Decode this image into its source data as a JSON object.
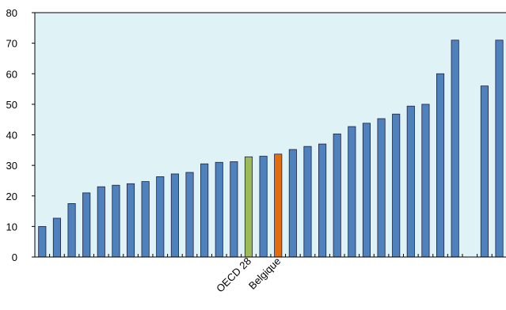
{
  "chart_data": {
    "type": "bar",
    "categories": [
      null,
      null,
      null,
      null,
      null,
      null,
      null,
      null,
      null,
      null,
      null,
      null,
      null,
      null,
      "OECD 28",
      null,
      "Belgique",
      null,
      null,
      null,
      null,
      null,
      null,
      null,
      null,
      null,
      null,
      null,
      null,
      null,
      null,
      null
    ],
    "values": [
      10,
      12.7,
      17.5,
      21,
      23,
      23.5,
      24,
      24.7,
      26.3,
      27.2,
      27.7,
      30.5,
      31,
      31.2,
      32.8,
      33,
      33.7,
      35.2,
      36.2,
      37,
      40.3,
      42.7,
      43.8,
      45.3,
      46.8,
      49.4,
      50,
      60,
      71,
      null,
      56,
      71
    ],
    "colors": [
      "#4f81bd",
      "#4f81bd",
      "#4f81bd",
      "#4f81bd",
      "#4f81bd",
      "#4f81bd",
      "#4f81bd",
      "#4f81bd",
      "#4f81bd",
      "#4f81bd",
      "#4f81bd",
      "#4f81bd",
      "#4f81bd",
      "#4f81bd",
      "#9bbb59",
      "#4f81bd",
      "#e46c0a",
      "#4f81bd",
      "#4f81bd",
      "#4f81bd",
      "#4f81bd",
      "#4f81bd",
      "#4f81bd",
      "#4f81bd",
      "#4f81bd",
      "#4f81bd",
      "#4f81bd",
      "#4f81bd",
      "#4f81bd",
      "#4f81bd",
      "#4f81bd",
      "#4f81bd"
    ],
    "ylim": [
      0,
      80
    ],
    "yticks": [
      0,
      10,
      20,
      30,
      40,
      50,
      60,
      70,
      80
    ],
    "grid": false
  }
}
